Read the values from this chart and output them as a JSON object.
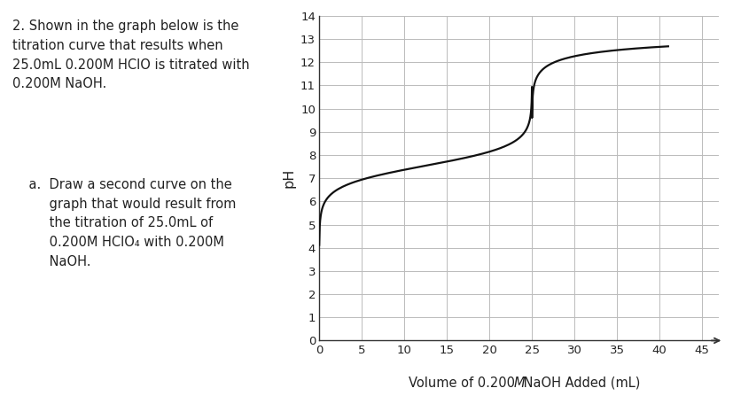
{
  "xlabel_normal": "Volume of 0.200 ",
  "xlabel_italic": "M",
  "xlabel_end": " NaOH Added (mL)",
  "ylabel": "pH",
  "xlim": [
    0,
    47
  ],
  "ylim": [
    0,
    14
  ],
  "xticks": [
    0,
    5,
    10,
    15,
    20,
    25,
    30,
    35,
    40,
    45
  ],
  "yticks": [
    0,
    1,
    2,
    3,
    4,
    5,
    6,
    7,
    8,
    9,
    10,
    11,
    12,
    13,
    14
  ],
  "curve_color": "#111111",
  "background_color": "#ffffff",
  "grid_color": "#bbbbbb",
  "text_color": "#222222",
  "text1_line1": "2. Shown in the graph below is the",
  "text1_line2": "titration curve that results when",
  "text1_line3": "25.0mL 0.200M HClO is titrated with",
  "text1_line4": "0.200M NaOH.",
  "text2_prefix": "    a.  Draw a second curve on the",
  "text2_lines": [
    "    a.  Draw a second curve on the",
    "         graph that would result from",
    "         the titration of 25.0mL of",
    "         0.200M HClO₄ with 0.200M",
    "         NaOH."
  ],
  "pKa": 7.54,
  "V_acid_mL": 25.0,
  "C_acid": 0.2,
  "C_base": 0.2
}
